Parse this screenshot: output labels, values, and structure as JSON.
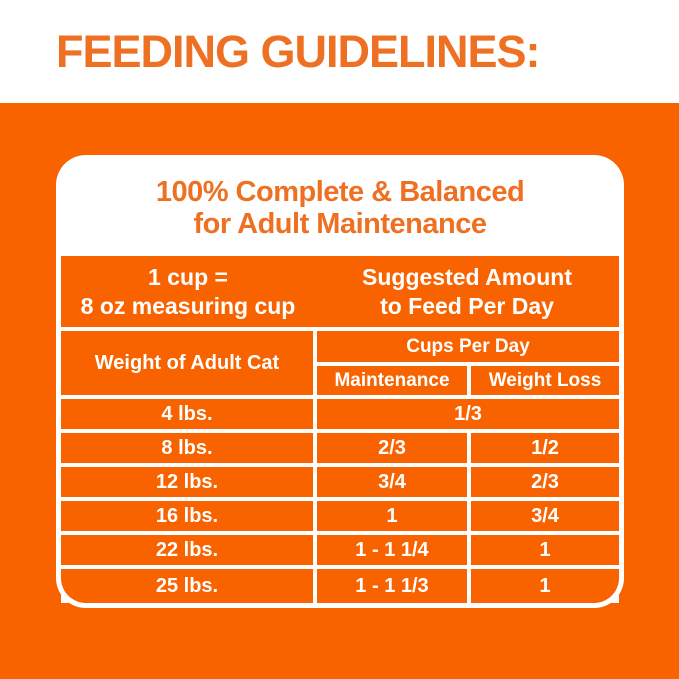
{
  "page_title": "FEEDING GUIDELINES:",
  "colors": {
    "orange_background": "#f86300",
    "orange_text": "#ee7023",
    "white": "#ffffff"
  },
  "card": {
    "title_line1": "100% Complete & Balanced",
    "title_line2": "for Adult Maintenance",
    "cup_note_line1": "1 cup =",
    "cup_note_line2": "8 oz measuring cup",
    "suggested_line1": "Suggested Amount",
    "suggested_line2": "to Feed Per Day"
  },
  "table": {
    "weight_column_header": "Weight of Adult Cat",
    "cups_per_day_header": "Cups Per Day",
    "maintenance_header": "Maintenance",
    "weight_loss_header": "Weight Loss",
    "rows": [
      {
        "weight": "4 lbs.",
        "maintenance": "1/3",
        "weight_loss": null
      },
      {
        "weight": "8 lbs.",
        "maintenance": "2/3",
        "weight_loss": "1/2"
      },
      {
        "weight": "12 lbs.",
        "maintenance": "3/4",
        "weight_loss": "2/3"
      },
      {
        "weight": "16 lbs.",
        "maintenance": "1",
        "weight_loss": "3/4"
      },
      {
        "weight": "22 lbs.",
        "maintenance": "1 - 1 1/4",
        "weight_loss": "1"
      },
      {
        "weight": "25 lbs.",
        "maintenance": "1 - 1 1/3",
        "weight_loss": "1"
      }
    ]
  }
}
